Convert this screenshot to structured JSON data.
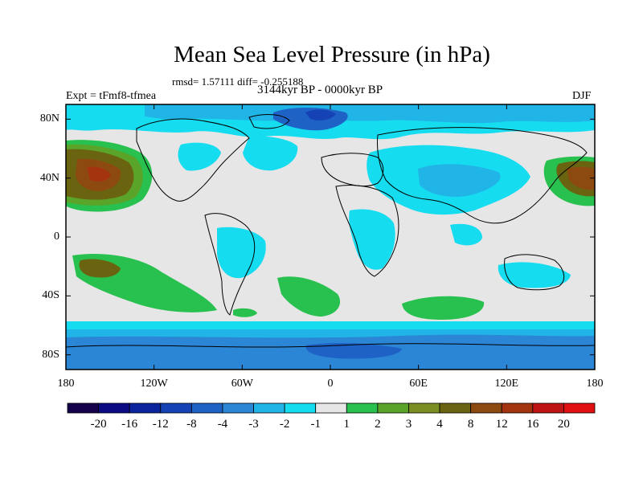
{
  "title": "Mean Sea Level Pressure (in hPa)",
  "stats": "rmsd= 1.57111 diff= -0.255188",
  "experiment": "Expt = tFmf8-tfmea",
  "period": "3144kyr BP - 0000kyr BP",
  "season": "DJF",
  "x_ticks": [
    "180",
    "120W",
    "60W",
    "0",
    "60E",
    "120E",
    "180"
  ],
  "y_ticks": [
    "80N",
    "40N",
    "0",
    "40S",
    "80S"
  ],
  "colorbar": {
    "labels": [
      "-20",
      "-16",
      "-12",
      "-8",
      "-4",
      "-3",
      "-2",
      "-1",
      "1",
      "2",
      "3",
      "4",
      "8",
      "12",
      "16",
      "20"
    ],
    "colors": [
      "#14004b",
      "#0a0a82",
      "#0a249e",
      "#1542b4",
      "#1f62c6",
      "#2b86d6",
      "#21b4e6",
      "#16dcf0",
      "#e6e6e6",
      "#28c04e",
      "#5aa42a",
      "#7a8e22",
      "#6a6410",
      "#8c4a10",
      "#a43410",
      "#be1414",
      "#e01010"
    ]
  },
  "map_layers": [
    {
      "name": "north-pacific-high",
      "level": "4"
    },
    {
      "name": "southern-ocean-low",
      "level": "-3"
    },
    {
      "name": "arctic-low",
      "level": "-4"
    },
    {
      "name": "south-atlantic-high",
      "level": "2"
    }
  ]
}
